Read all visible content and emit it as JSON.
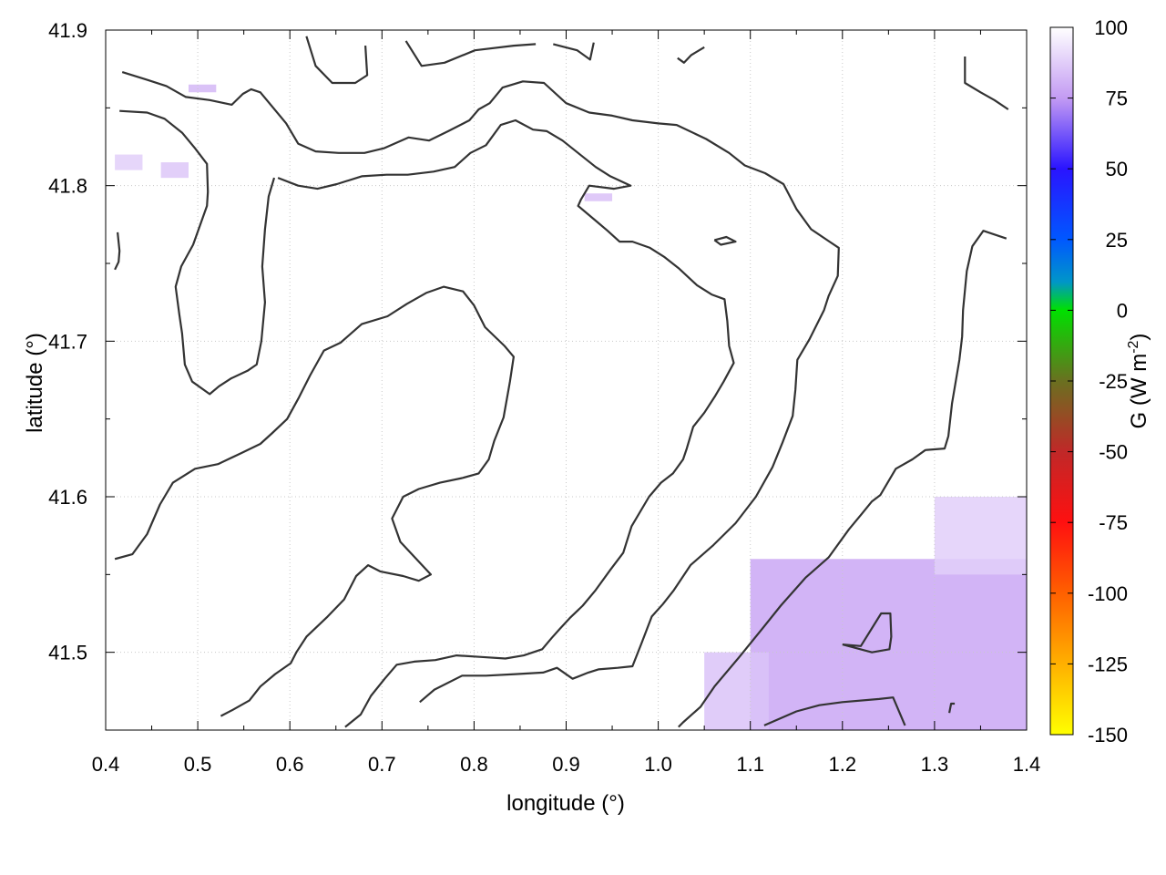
{
  "chart_data": {
    "type": "heatmap",
    "xlabel": "longitude (°)",
    "ylabel": "latitude (°)",
    "xlim": [
      0.4,
      1.4
    ],
    "ylim": [
      41.45,
      41.9
    ],
    "x_ticks": [
      "0.4",
      "0.5",
      "0.6",
      "0.7",
      "0.8",
      "0.9",
      "1.0",
      "1.1",
      "1.2",
      "1.3",
      "1.4"
    ],
    "x_tick_values": [
      0.4,
      0.5,
      0.6,
      0.7,
      0.8,
      0.9,
      1.0,
      1.1,
      1.2,
      1.3,
      1.4
    ],
    "y_ticks": [
      "41.5",
      "41.6",
      "41.7",
      "41.8",
      "41.9"
    ],
    "y_tick_values": [
      41.5,
      41.6,
      41.7,
      41.8,
      41.9
    ],
    "grid": true,
    "colorbar": {
      "label_main": "G (W m",
      "label_sup": "-2",
      "label_close": ")",
      "range": [
        -150,
        100
      ],
      "ticks": [
        "100",
        "75",
        "50",
        "25",
        "0",
        "-25",
        "-50",
        "-75",
        "-100",
        "-125",
        "-150"
      ],
      "tick_values": [
        100,
        75,
        50,
        25,
        0,
        -25,
        -50,
        -75,
        -100,
        -125,
        -150
      ],
      "stops": [
        {
          "value": 100,
          "color": "#ffffff"
        },
        {
          "value": 75,
          "color": "#c39bf3"
        },
        {
          "value": 50,
          "color": "#2a14ff"
        },
        {
          "value": 25,
          "color": "#0058ff"
        },
        {
          "value": 10,
          "color": "#0096c8"
        },
        {
          "value": 0,
          "color": "#00e000"
        },
        {
          "value": -25,
          "color": "#6a7020"
        },
        {
          "value": -50,
          "color": "#c02828"
        },
        {
          "value": -75,
          "color": "#ff1010"
        },
        {
          "value": -100,
          "color": "#ff6000"
        },
        {
          "value": -125,
          "color": "#ffb000"
        },
        {
          "value": -150,
          "color": "#ffff00"
        }
      ]
    },
    "contour_color": "#333333",
    "heat_patches": [
      {
        "lon_range": [
          1.1,
          1.4
        ],
        "lat_range": [
          41.45,
          41.56
        ],
        "value": 78
      },
      {
        "lon_range": [
          1.05,
          1.12
        ],
        "lat_range": [
          41.45,
          41.5
        ],
        "value": 85
      },
      {
        "lon_range": [
          1.3,
          1.4
        ],
        "lat_range": [
          41.55,
          41.6
        ],
        "value": 88
      },
      {
        "lon_range": [
          0.49,
          0.52
        ],
        "lat_range": [
          41.86,
          41.865
        ],
        "value": 82
      },
      {
        "lon_range": [
          0.41,
          0.44
        ],
        "lat_range": [
          41.81,
          41.82
        ],
        "value": 88
      },
      {
        "lon_range": [
          0.46,
          0.49
        ],
        "lat_range": [
          41.805,
          41.815
        ],
        "value": 86
      },
      {
        "lon_range": [
          0.92,
          0.95
        ],
        "lat_range": [
          41.79,
          41.795
        ],
        "value": 84
      }
    ],
    "contours": [
      [
        [
          0.418,
          41.873
        ],
        [
          0.445,
          41.868
        ],
        [
          0.466,
          41.864
        ],
        [
          0.487,
          41.857
        ],
        [
          0.513,
          41.855
        ],
        [
          0.537,
          41.852
        ],
        [
          0.549,
          41.859
        ],
        [
          0.558,
          41.862
        ],
        [
          0.568,
          41.86
        ],
        [
          0.596,
          41.84
        ],
        [
          0.609,
          41.827
        ],
        [
          0.628,
          41.822
        ],
        [
          0.653,
          41.821
        ],
        [
          0.681,
          41.821
        ],
        [
          0.702,
          41.824
        ],
        [
          0.729,
          41.831
        ],
        [
          0.751,
          41.829
        ],
        [
          0.772,
          41.835
        ],
        [
          0.795,
          41.842
        ],
        [
          0.805,
          41.849
        ],
        [
          0.817,
          41.853
        ],
        [
          0.831,
          41.863
        ],
        [
          0.853,
          41.867
        ],
        [
          0.876,
          41.866
        ],
        [
          0.9,
          41.853
        ],
        [
          0.925,
          41.847
        ],
        [
          0.95,
          41.845
        ],
        [
          0.972,
          41.842
        ],
        [
          1.0,
          41.84
        ],
        [
          1.02,
          41.839
        ],
        [
          1.052,
          41.83
        ],
        [
          1.077,
          41.821
        ],
        [
          1.094,
          41.813
        ],
        [
          1.116,
          41.808
        ],
        [
          1.136,
          41.801
        ],
        [
          1.15,
          41.785
        ],
        [
          1.166,
          41.772
        ],
        [
          1.186,
          41.764
        ],
        [
          1.196,
          41.76
        ],
        [
          1.195,
          41.742
        ],
        [
          1.185,
          41.729
        ],
        [
          1.18,
          41.72
        ],
        [
          1.164,
          41.701
        ],
        [
          1.151,
          41.688
        ],
        [
          1.149,
          41.669
        ],
        [
          1.146,
          41.652
        ],
        [
          1.135,
          41.635
        ],
        [
          1.124,
          41.619
        ],
        [
          1.106,
          41.6
        ],
        [
          1.084,
          41.583
        ],
        [
          1.06,
          41.569
        ],
        [
          1.035,
          41.556
        ],
        [
          1.017,
          41.54
        ],
        [
          1.005,
          41.531
        ],
        [
          0.993,
          41.523
        ],
        [
          0.982,
          41.506
        ],
        [
          0.972,
          41.491
        ],
        [
          0.956,
          41.49
        ],
        [
          0.935,
          41.489
        ],
        [
          0.924,
          41.487
        ],
        [
          0.907,
          41.483
        ],
        [
          0.89,
          41.49
        ],
        [
          0.875,
          41.487
        ],
        [
          0.845,
          41.486
        ],
        [
          0.813,
          41.485
        ],
        [
          0.787,
          41.485
        ],
        [
          0.757,
          41.476
        ],
        [
          0.741,
          41.468
        ]
      ],
      [
        [
          0.415,
          41.848
        ],
        [
          0.445,
          41.847
        ],
        [
          0.464,
          41.843
        ],
        [
          0.483,
          41.834
        ],
        [
          0.497,
          41.824
        ],
        [
          0.51,
          41.814
        ],
        [
          0.511,
          41.796
        ],
        [
          0.51,
          41.787
        ],
        [
          0.495,
          41.762
        ],
        [
          0.482,
          41.748
        ],
        [
          0.476,
          41.735
        ],
        [
          0.48,
          41.717
        ],
        [
          0.483,
          41.705
        ],
        [
          0.486,
          41.685
        ],
        [
          0.494,
          41.674
        ],
        [
          0.513,
          41.666
        ],
        [
          0.523,
          41.671
        ],
        [
          0.536,
          41.676
        ],
        [
          0.554,
          41.681
        ],
        [
          0.564,
          41.685
        ],
        [
          0.569,
          41.7
        ],
        [
          0.573,
          41.725
        ],
        [
          0.57,
          41.748
        ],
        [
          0.573,
          41.772
        ],
        [
          0.577,
          41.793
        ],
        [
          0.583,
          41.805
        ]
      ],
      [
        [
          0.413,
          41.77
        ],
        [
          0.415,
          41.758
        ],
        [
          0.414,
          41.751
        ],
        [
          0.41,
          41.746
        ]
      ],
      [
        [
          0.587,
          41.805
        ],
        [
          0.609,
          41.8
        ],
        [
          0.63,
          41.798
        ],
        [
          0.651,
          41.801
        ],
        [
          0.678,
          41.806
        ],
        [
          0.705,
          41.807
        ],
        [
          0.728,
          41.807
        ],
        [
          0.756,
          41.809
        ],
        [
          0.779,
          41.812
        ],
        [
          0.796,
          41.821
        ],
        [
          0.813,
          41.826
        ],
        [
          0.829,
          41.839
        ],
        [
          0.845,
          41.842
        ],
        [
          0.864,
          41.836
        ],
        [
          0.879,
          41.835
        ],
        [
          0.896,
          41.829
        ],
        [
          0.913,
          41.821
        ],
        [
          0.932,
          41.812
        ],
        [
          0.948,
          41.806
        ],
        [
          0.97,
          41.8
        ],
        [
          0.952,
          41.798
        ],
        [
          0.925,
          41.8
        ],
        [
          0.916,
          41.791
        ],
        [
          0.913,
          41.787
        ],
        [
          0.935,
          41.776
        ],
        [
          0.945,
          41.771
        ],
        [
          0.958,
          41.764
        ],
        [
          0.972,
          41.764
        ],
        [
          0.991,
          41.76
        ],
        [
          1.007,
          41.754
        ],
        [
          1.022,
          41.747
        ],
        [
          1.042,
          41.736
        ],
        [
          1.058,
          41.73
        ],
        [
          1.072,
          41.727
        ],
        [
          1.075,
          41.713
        ],
        [
          1.077,
          41.697
        ],
        [
          1.082,
          41.686
        ],
        [
          1.071,
          41.674
        ],
        [
          1.062,
          41.665
        ],
        [
          1.05,
          41.654
        ],
        [
          1.038,
          41.645
        ],
        [
          1.031,
          41.631
        ],
        [
          1.027,
          41.624
        ],
        [
          1.016,
          41.615
        ],
        [
          1.003,
          41.609
        ],
        [
          0.99,
          41.6
        ],
        [
          0.971,
          41.581
        ],
        [
          0.962,
          41.564
        ],
        [
          0.948,
          41.553
        ],
        [
          0.932,
          41.54
        ],
        [
          0.918,
          41.53
        ],
        [
          0.904,
          41.522
        ],
        [
          0.893,
          41.515
        ],
        [
          0.884,
          41.509
        ],
        [
          0.874,
          41.502
        ],
        [
          0.854,
          41.498
        ],
        [
          0.834,
          41.496
        ],
        [
          0.808,
          41.497
        ],
        [
          0.781,
          41.498
        ],
        [
          0.758,
          41.495
        ],
        [
          0.735,
          41.494
        ],
        [
          0.716,
          41.492
        ],
        [
          0.703,
          41.483
        ],
        [
          0.688,
          41.472
        ],
        [
          0.677,
          41.46
        ],
        [
          0.66,
          41.452
        ]
      ],
      [
        [
          0.41,
          41.56
        ],
        [
          0.429,
          41.563
        ],
        [
          0.445,
          41.576
        ],
        [
          0.459,
          41.595
        ],
        [
          0.473,
          41.609
        ],
        [
          0.497,
          41.618
        ],
        [
          0.522,
          41.621
        ],
        [
          0.547,
          41.628
        ],
        [
          0.568,
          41.634
        ],
        [
          0.581,
          41.641
        ],
        [
          0.597,
          41.65
        ],
        [
          0.61,
          41.664
        ],
        [
          0.622,
          41.678
        ],
        [
          0.637,
          41.694
        ],
        [
          0.655,
          41.699
        ],
        [
          0.678,
          41.711
        ],
        [
          0.706,
          41.716
        ],
        [
          0.727,
          41.724
        ],
        [
          0.748,
          41.731
        ],
        [
          0.767,
          41.735
        ],
        [
          0.788,
          41.732
        ],
        [
          0.8,
          41.723
        ],
        [
          0.812,
          41.709
        ],
        [
          0.833,
          41.697
        ],
        [
          0.843,
          41.69
        ],
        [
          0.839,
          41.674
        ],
        [
          0.832,
          41.651
        ],
        [
          0.822,
          41.636
        ],
        [
          0.816,
          41.624
        ],
        [
          0.805,
          41.615
        ],
        [
          0.787,
          41.612
        ],
        [
          0.763,
          41.609
        ],
        [
          0.74,
          41.605
        ],
        [
          0.723,
          41.6
        ],
        [
          0.711,
          41.586
        ],
        [
          0.72,
          41.571
        ],
        [
          0.742,
          41.557
        ],
        [
          0.753,
          41.55
        ],
        [
          0.74,
          41.546
        ],
        [
          0.723,
          41.549
        ],
        [
          0.698,
          41.552
        ],
        [
          0.685,
          41.556
        ],
        [
          0.672,
          41.549
        ],
        [
          0.659,
          41.534
        ],
        [
          0.641,
          41.523
        ],
        [
          0.618,
          41.51
        ],
        [
          0.607,
          41.5
        ],
        [
          0.601,
          41.493
        ],
        [
          0.584,
          41.486
        ],
        [
          0.568,
          41.478
        ],
        [
          0.556,
          41.469
        ],
        [
          0.538,
          41.463
        ],
        [
          0.525,
          41.459
        ]
      ],
      [
        [
          1.061,
          41.765
        ],
        [
          1.074,
          41.767
        ],
        [
          1.084,
          41.764
        ],
        [
          1.068,
          41.762
        ],
        [
          1.061,
          41.765
        ]
      ],
      [
        [
          1.115,
          41.453
        ],
        [
          1.15,
          41.462
        ],
        [
          1.175,
          41.466
        ],
        [
          1.2,
          41.468
        ],
        [
          1.24,
          41.47
        ],
        [
          1.255,
          41.471
        ],
        [
          1.268,
          41.453
        ]
      ],
      [
        [
          1.333,
          41.883
        ],
        [
          1.333,
          41.866
        ],
        [
          1.35,
          41.86
        ],
        [
          1.365,
          41.855
        ],
        [
          1.38,
          41.849
        ]
      ],
      [
        [
          1.378,
          41.766
        ],
        [
          1.353,
          41.771
        ],
        [
          1.341,
          41.761
        ],
        [
          1.335,
          41.745
        ],
        [
          1.331,
          41.72
        ],
        [
          1.33,
          41.703
        ],
        [
          1.327,
          41.688
        ],
        [
          1.319,
          41.66
        ],
        [
          1.315,
          41.639
        ],
        [
          1.311,
          41.631
        ],
        [
          1.29,
          41.63
        ],
        [
          1.276,
          41.624
        ],
        [
          1.258,
          41.618
        ],
        [
          1.241,
          41.601
        ],
        [
          1.232,
          41.597
        ],
        [
          1.221,
          41.589
        ],
        [
          1.207,
          41.579
        ],
        [
          1.185,
          41.561
        ],
        [
          1.16,
          41.548
        ],
        [
          1.133,
          41.53
        ],
        [
          1.114,
          41.516
        ],
        [
          1.088,
          41.497
        ],
        [
          1.061,
          41.478
        ],
        [
          1.046,
          41.465
        ],
        [
          1.027,
          41.455
        ],
        [
          1.022,
          41.452
        ]
      ],
      [
        [
          1.2,
          41.505
        ],
        [
          1.22,
          41.504
        ],
        [
          1.242,
          41.525
        ],
        [
          1.252,
          41.525
        ],
        [
          1.253,
          41.51
        ],
        [
          1.251,
          41.502
        ],
        [
          1.232,
          41.5
        ],
        [
          1.2,
          41.505
        ]
      ],
      [
        [
          0.618,
          41.896
        ],
        [
          0.628,
          41.877
        ],
        [
          0.646,
          41.866
        ],
        [
          0.671,
          41.866
        ],
        [
          0.684,
          41.871
        ],
        [
          0.682,
          41.89
        ]
      ],
      [
        [
          0.726,
          41.893
        ],
        [
          0.743,
          41.877
        ],
        [
          0.768,
          41.879
        ],
        [
          0.801,
          41.887
        ],
        [
          0.843,
          41.89
        ],
        [
          0.867,
          41.891
        ]
      ],
      [
        [
          0.886,
          41.891
        ],
        [
          0.912,
          41.887
        ],
        [
          0.926,
          41.881
        ],
        [
          0.93,
          41.892
        ]
      ],
      [
        [
          1.021,
          41.882
        ],
        [
          1.028,
          41.879
        ],
        [
          1.036,
          41.884
        ],
        [
          1.05,
          41.889
        ]
      ],
      [
        [
          1.316,
          41.461
        ],
        [
          1.318,
          41.467
        ],
        [
          1.322,
          41.467
        ]
      ]
    ]
  }
}
